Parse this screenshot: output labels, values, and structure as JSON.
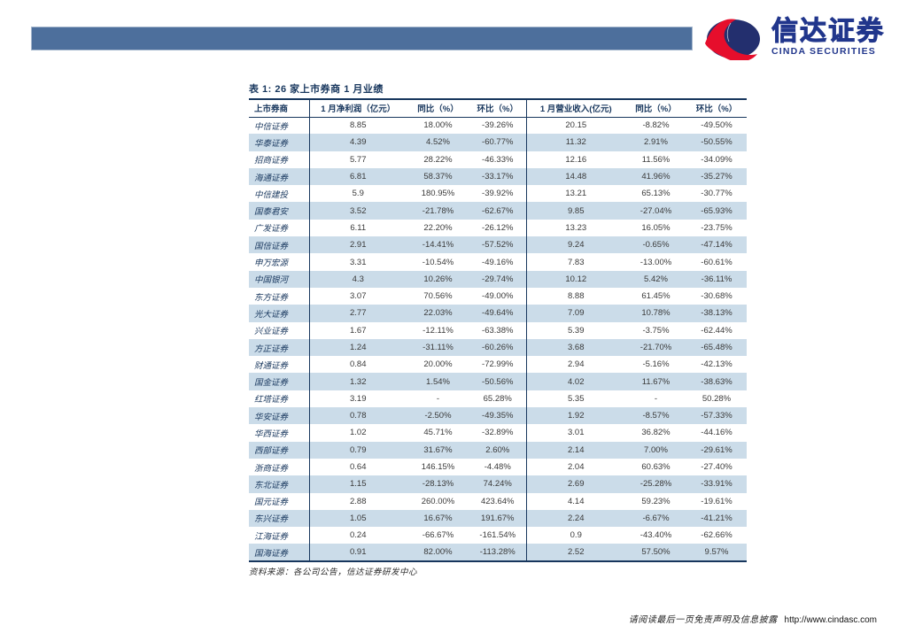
{
  "logo": {
    "cn": "信达证券",
    "en": "CINDA SECURITIES"
  },
  "header_bar": {
    "color": "#4d6f9c"
  },
  "table": {
    "title": "表 1: 26 家上市券商 1 月业绩",
    "columns": [
      "上市券商",
      "1 月净利润（亿元）",
      "同比（%）",
      "环比（%）",
      "1 月营业收入(亿元)",
      "同比（%）",
      "环比（%）"
    ],
    "rows": [
      [
        "中信证券",
        "8.85",
        "18.00%",
        "-39.26%",
        "20.15",
        "-8.82%",
        "-49.50%"
      ],
      [
        "华泰证券",
        "4.39",
        "4.52%",
        "-60.77%",
        "11.32",
        "2.91%",
        "-50.55%"
      ],
      [
        "招商证券",
        "5.77",
        "28.22%",
        "-46.33%",
        "12.16",
        "11.56%",
        "-34.09%"
      ],
      [
        "海通证券",
        "6.81",
        "58.37%",
        "-33.17%",
        "14.48",
        "41.96%",
        "-35.27%"
      ],
      [
        "中信建投",
        "5.9",
        "180.95%",
        "-39.92%",
        "13.21",
        "65.13%",
        "-30.77%"
      ],
      [
        "国泰君安",
        "3.52",
        "-21.78%",
        "-62.67%",
        "9.85",
        "-27.04%",
        "-65.93%"
      ],
      [
        "广发证券",
        "6.11",
        "22.20%",
        "-26.12%",
        "13.23",
        "16.05%",
        "-23.75%"
      ],
      [
        "国信证券",
        "2.91",
        "-14.41%",
        "-57.52%",
        "9.24",
        "-0.65%",
        "-47.14%"
      ],
      [
        "申万宏源",
        "3.31",
        "-10.54%",
        "-49.16%",
        "7.83",
        "-13.00%",
        "-60.61%"
      ],
      [
        "中国银河",
        "4.3",
        "10.26%",
        "-29.74%",
        "10.12",
        "5.42%",
        "-36.11%"
      ],
      [
        "东方证券",
        "3.07",
        "70.56%",
        "-49.00%",
        "8.88",
        "61.45%",
        "-30.68%"
      ],
      [
        "光大证券",
        "2.77",
        "22.03%",
        "-49.64%",
        "7.09",
        "10.78%",
        "-38.13%"
      ],
      [
        "兴业证券",
        "1.67",
        "-12.11%",
        "-63.38%",
        "5.39",
        "-3.75%",
        "-62.44%"
      ],
      [
        "方正证券",
        "1.24",
        "-31.11%",
        "-60.26%",
        "3.68",
        "-21.70%",
        "-65.48%"
      ],
      [
        "财通证券",
        "0.84",
        "20.00%",
        "-72.99%",
        "2.94",
        "-5.16%",
        "-42.13%"
      ],
      [
        "国金证券",
        "1.32",
        "1.54%",
        "-50.56%",
        "4.02",
        "11.67%",
        "-38.63%"
      ],
      [
        "红塔证券",
        "3.19",
        "-",
        "65.28%",
        "5.35",
        "-",
        "50.28%"
      ],
      [
        "华安证券",
        "0.78",
        "-2.50%",
        "-49.35%",
        "1.92",
        "-8.57%",
        "-57.33%"
      ],
      [
        "华西证券",
        "1.02",
        "45.71%",
        "-32.89%",
        "3.01",
        "36.82%",
        "-44.16%"
      ],
      [
        "西部证券",
        "0.79",
        "31.67%",
        "2.60%",
        "2.14",
        "7.00%",
        "-29.61%"
      ],
      [
        "浙商证券",
        "0.64",
        "146.15%",
        "-4.48%",
        "2.04",
        "60.63%",
        "-27.40%"
      ],
      [
        "东北证券",
        "1.15",
        "-28.13%",
        "74.24%",
        "2.69",
        "-25.28%",
        "-33.91%"
      ],
      [
        "国元证券",
        "2.88",
        "260.00%",
        "423.64%",
        "4.14",
        "59.23%",
        "-19.61%"
      ],
      [
        "东兴证券",
        "1.05",
        "16.67%",
        "191.67%",
        "2.24",
        "-6.67%",
        "-41.21%"
      ],
      [
        "江海证券",
        "0.24",
        "-66.67%",
        "-161.54%",
        "0.9",
        "-43.40%",
        "-62.66%"
      ],
      [
        "国海证券",
        "0.91",
        "82.00%",
        "-113.28%",
        "2.52",
        "57.50%",
        "9.57%"
      ]
    ],
    "source": "资料来源：各公司公告，信达证券研发中心"
  },
  "footer": {
    "disclaimer": "请阅读最后一页免责声明及信息披露",
    "url": "http://www.cindasc.com"
  },
  "colors": {
    "navy": "#17365d",
    "bar_blue": "#4d6f9c",
    "alt_row": "#cbdce9",
    "logo_blue": "#21368c",
    "logo_red": "#e60e2c"
  }
}
